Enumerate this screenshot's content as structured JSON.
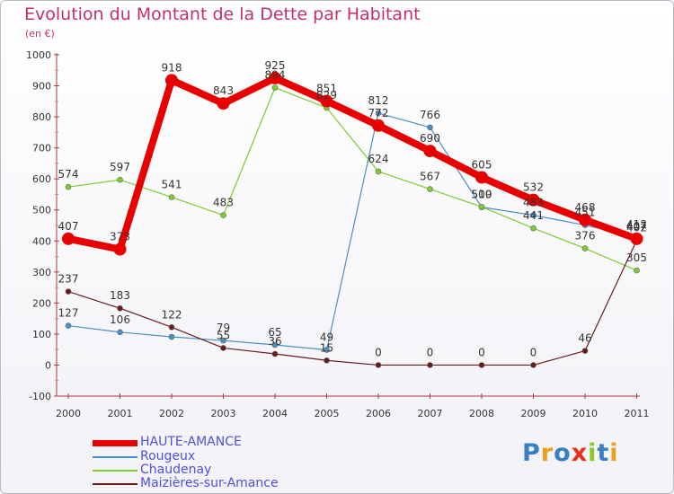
{
  "chart_data": {
    "type": "line",
    "title": "Evolution du Montant de la Dette par Habitant",
    "subtitle": "(en €)",
    "xlabel": "",
    "ylabel": "",
    "x": [
      "2000",
      "2001",
      "2002",
      "2003",
      "2004",
      "2005",
      "2006",
      "2007",
      "2008",
      "2009",
      "2010",
      "2011"
    ],
    "ylim": [
      -100,
      1000
    ],
    "yticks": [
      -100,
      0,
      100,
      200,
      300,
      400,
      500,
      600,
      700,
      800,
      900,
      1000
    ],
    "grid": false,
    "legend_position": "bottom-left",
    "series": [
      {
        "name": "HAUTE-AMANCE",
        "color": "#e80000",
        "values": [
          407,
          373,
          918,
          843,
          925,
          851,
          772,
          690,
          605,
          532,
          468,
          407
        ]
      },
      {
        "name": "Rougeux",
        "color": "#4a90c8",
        "values": [
          127,
          106,
          91,
          79,
          65,
          49,
          812,
          766,
          509,
          483,
          451,
          412
        ]
      },
      {
        "name": "Chaudenay",
        "color": "#7dcc30",
        "values": [
          574,
          597,
          541,
          483,
          894,
          829,
          624,
          567,
          510,
          441,
          376,
          305
        ]
      },
      {
        "name": "Maizières-sur-Amance",
        "color": "#6b1a1a",
        "values": [
          237,
          183,
          122,
          55,
          36,
          15,
          0,
          0,
          0,
          0,
          46,
          402
        ]
      }
    ],
    "data_labels": {
      "HAUTE-AMANCE": [
        "407",
        "373",
        "918",
        "843",
        "925",
        "851",
        "772",
        "690",
        "605",
        "532",
        "468",
        "407"
      ],
      "Rougeux": [
        "127",
        "106",
        "",
        "79",
        "65",
        "49",
        "812",
        "766",
        "509",
        "483",
        "451",
        "412"
      ],
      "Chaudenay": [
        "574",
        "597",
        "541",
        "483",
        "894",
        "829",
        "624",
        "567",
        "510",
        "441",
        "376",
        "305"
      ],
      "Maizières-sur-Amance": [
        "237",
        "183",
        "122",
        "55",
        "36",
        "15",
        "0",
        "0",
        "0",
        "0",
        "46",
        "402"
      ]
    }
  },
  "logo": {
    "text": "Proxiti"
  }
}
